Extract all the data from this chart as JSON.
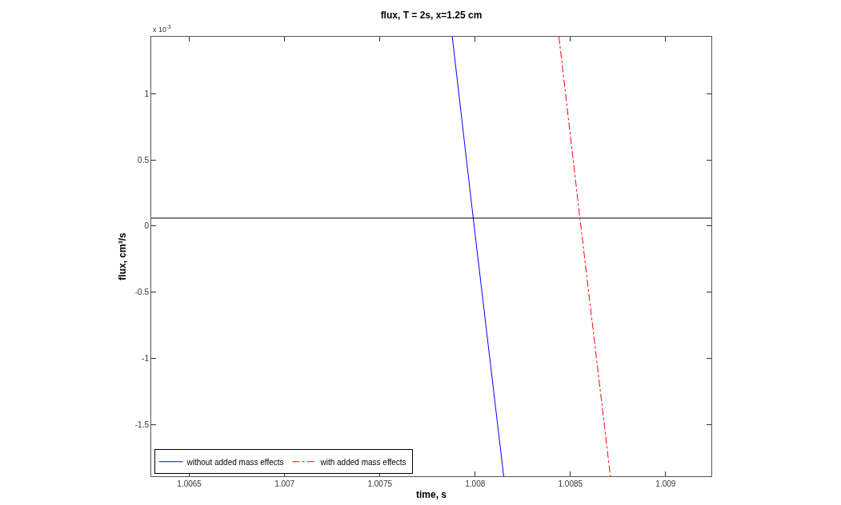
{
  "chart_data": {
    "type": "line",
    "title": "flux, T = 2s, x=1.25 cm",
    "xlabel": "time, s",
    "ylabel": "flux, cm³/s",
    "annotations": [
      "x 10$^{-3}$"
    ],
    "series": [
      {
        "name": "without added mass effects",
        "color": "#0000ff",
        "line_style": "solid",
        "x": [
          1.00788,
          1.00799,
          1.00815
        ],
        "values": [
          1.43,
          0.06,
          -1.89
        ]
      },
      {
        "name": "with added mass effects",
        "color": "#ff0000",
        "line_style": "dashed",
        "x": [
          1.00844,
          1.00855,
          1.00871
        ],
        "values": [
          1.43,
          0.06,
          -1.89
        ]
      }
    ],
    "ref_lines": [
      {
        "axis": "y",
        "value": 0.06,
        "color": "#000000"
      }
    ],
    "xlim": [
      1.0063,
      1.00924
    ],
    "xticks": [
      1.0065,
      1.007,
      1.0075,
      1.008,
      1.0085,
      1.009
    ],
    "ylim": [
      -1.89,
      1.43
    ],
    "yticks": [
      -1.5,
      -1,
      -0.5,
      0,
      0.5,
      1
    ],
    "grid": false,
    "legend": "bottom left",
    "marker": "none"
  }
}
